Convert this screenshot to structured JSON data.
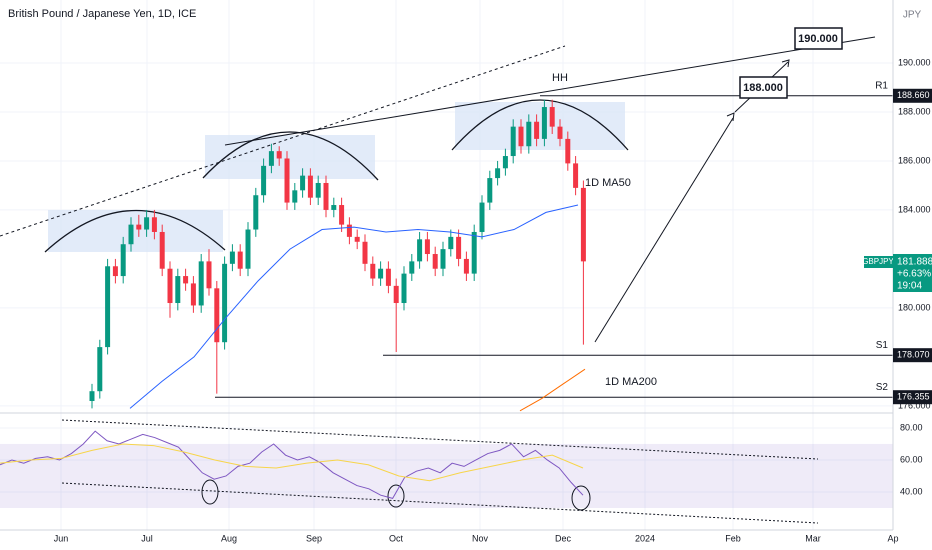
{
  "chart_data": {
    "type": "candlestick",
    "title": "British Pound / Japanese Yen, 1D, ICE",
    "currency": "JPY",
    "ylim": [
      175.71,
      192.57
    ],
    "yticks": [
      {
        "value": 176,
        "label": "176.000"
      },
      {
        "value": 180,
        "label": "180.000"
      },
      {
        "value": 184,
        "label": "184.000"
      },
      {
        "value": 186,
        "label": "186.000"
      },
      {
        "value": 188,
        "label": "188.000"
      },
      {
        "value": 190,
        "label": "190.000"
      }
    ],
    "up_color": "#089981",
    "down_color": "#f23645",
    "candles": [
      [
        176.2,
        176.9,
        175.9,
        176.6
      ],
      [
        176.6,
        178.7,
        176.3,
        178.4
      ],
      [
        178.4,
        182.0,
        178.1,
        181.7
      ],
      [
        181.7,
        182.0,
        181.0,
        181.3
      ],
      [
        181.3,
        182.9,
        181.0,
        182.6
      ],
      [
        182.6,
        183.7,
        182.3,
        183.4
      ],
      [
        183.4,
        183.8,
        182.9,
        183.2
      ],
      [
        183.2,
        184.0,
        182.9,
        183.7
      ],
      [
        183.7,
        184.0,
        182.8,
        183.1
      ],
      [
        183.1,
        183.4,
        181.3,
        181.6
      ],
      [
        181.6,
        181.9,
        179.6,
        180.2
      ],
      [
        180.2,
        181.6,
        179.9,
        181.3
      ],
      [
        181.3,
        181.6,
        180.7,
        181.0
      ],
      [
        181.0,
        181.3,
        179.8,
        180.1
      ],
      [
        180.1,
        182.2,
        179.8,
        181.9
      ],
      [
        181.9,
        182.4,
        180.5,
        180.8
      ],
      [
        180.8,
        181.1,
        176.5,
        178.6
      ],
      [
        178.6,
        182.1,
        178.3,
        181.8
      ],
      [
        181.8,
        182.6,
        181.5,
        182.3
      ],
      [
        182.3,
        182.6,
        181.3,
        181.6
      ],
      [
        181.6,
        183.5,
        181.3,
        183.2
      ],
      [
        183.2,
        184.9,
        182.9,
        184.6
      ],
      [
        184.6,
        186.1,
        184.3,
        185.8
      ],
      [
        185.8,
        186.7,
        185.5,
        186.4
      ],
      [
        186.4,
        186.6,
        185.8,
        186.1
      ],
      [
        186.1,
        186.4,
        184.0,
        184.3
      ],
      [
        184.3,
        185.1,
        184.0,
        184.8
      ],
      [
        184.8,
        185.7,
        184.5,
        185.4
      ],
      [
        185.4,
        185.7,
        184.2,
        184.5
      ],
      [
        184.5,
        185.4,
        184.2,
        185.1
      ],
      [
        185.1,
        185.4,
        183.7,
        184.0
      ],
      [
        184.0,
        184.5,
        183.7,
        184.2
      ],
      [
        184.2,
        184.5,
        183.1,
        183.4
      ],
      [
        183.4,
        183.7,
        182.6,
        182.9
      ],
      [
        182.9,
        183.2,
        182.4,
        182.7
      ],
      [
        182.7,
        183.0,
        181.5,
        181.8
      ],
      [
        181.8,
        182.1,
        180.9,
        181.2
      ],
      [
        181.2,
        181.9,
        180.9,
        181.6
      ],
      [
        181.6,
        181.9,
        180.6,
        180.9
      ],
      [
        180.9,
        181.2,
        178.2,
        180.2
      ],
      [
        180.2,
        181.7,
        179.9,
        181.4
      ],
      [
        181.4,
        182.2,
        181.1,
        181.9
      ],
      [
        181.9,
        183.1,
        181.6,
        182.8
      ],
      [
        182.8,
        183.1,
        181.9,
        182.2
      ],
      [
        182.2,
        182.5,
        181.3,
        181.6
      ],
      [
        181.6,
        182.7,
        181.3,
        182.4
      ],
      [
        182.4,
        183.2,
        182.1,
        182.9
      ],
      [
        182.9,
        183.2,
        181.7,
        182.0
      ],
      [
        182.0,
        182.3,
        181.1,
        181.4
      ],
      [
        181.4,
        183.4,
        181.1,
        183.1
      ],
      [
        183.1,
        184.6,
        182.8,
        184.3
      ],
      [
        184.3,
        185.6,
        184.0,
        185.3
      ],
      [
        185.3,
        186.0,
        185.0,
        185.7
      ],
      [
        185.7,
        186.5,
        185.4,
        186.2
      ],
      [
        186.2,
        187.7,
        185.9,
        187.4
      ],
      [
        187.4,
        187.7,
        186.3,
        186.6
      ],
      [
        186.6,
        187.9,
        186.3,
        187.6
      ],
      [
        187.6,
        187.9,
        186.6,
        186.9
      ],
      [
        186.9,
        188.5,
        186.6,
        188.2
      ],
      [
        188.2,
        188.5,
        187.1,
        187.4
      ],
      [
        187.4,
        187.7,
        186.6,
        186.9
      ],
      [
        186.9,
        187.2,
        185.6,
        185.9
      ],
      [
        185.9,
        186.2,
        184.6,
        184.9
      ],
      [
        184.9,
        185.2,
        178.5,
        181.9
      ]
    ],
    "ma50": {
      "name": "1D MA50",
      "color": "#2962ff",
      "values": [
        175.9,
        177.0,
        178.0,
        179.6,
        181.1,
        182.4,
        183.2,
        183.3,
        183.1,
        183.2,
        183.1,
        182.9,
        183.2,
        183.9,
        184.2
      ]
    },
    "ma200": {
      "name": "1D MA200",
      "color": "#ff6d00",
      "values": [
        175.8,
        176.3,
        176.9,
        177.5
      ]
    },
    "levels": [
      {
        "name": "R1",
        "value": 188.66,
        "label": "188.660"
      },
      {
        "name": "S1",
        "value": 178.07,
        "label": "178.070"
      },
      {
        "name": "S2",
        "value": 176.355,
        "label": "176.355"
      }
    ],
    "annotations": {
      "peak": "HH",
      "target1": "188.000",
      "target2": "190.000"
    },
    "last": {
      "symbol": "GBPJPY",
      "price": "181.888",
      "change": "+6.63%",
      "countdown": "19:04"
    },
    "rsi": {
      "ylim": [
        16.25,
        88.1
      ],
      "yticks": [
        {
          "value": 80,
          "label": "80.00"
        },
        {
          "value": 60,
          "label": "60.00"
        },
        {
          "value": 40,
          "label": "40.00"
        }
      ],
      "band": [
        30,
        70
      ],
      "values": [
        57,
        60,
        58,
        61,
        62,
        60,
        64,
        70,
        78,
        72,
        70,
        73,
        76,
        74,
        71,
        68,
        60,
        52,
        48,
        50,
        56,
        58,
        65,
        70,
        63,
        60,
        62,
        58,
        52,
        48,
        44,
        42,
        38,
        36,
        49,
        53,
        55,
        52,
        58,
        56,
        60,
        64,
        66,
        70,
        62,
        66,
        60,
        55,
        46,
        38
      ],
      "ma": [
        58,
        60,
        61,
        66,
        70,
        69,
        65,
        60,
        56,
        55,
        58,
        60,
        57,
        50,
        47,
        52,
        56,
        60,
        63,
        55
      ]
    },
    "time_axis": [
      "Jun",
      "Jul",
      "Aug",
      "Sep",
      "Oct",
      "Nov",
      "Dec",
      "2024",
      "Feb",
      "Mar",
      "Ap"
    ]
  }
}
